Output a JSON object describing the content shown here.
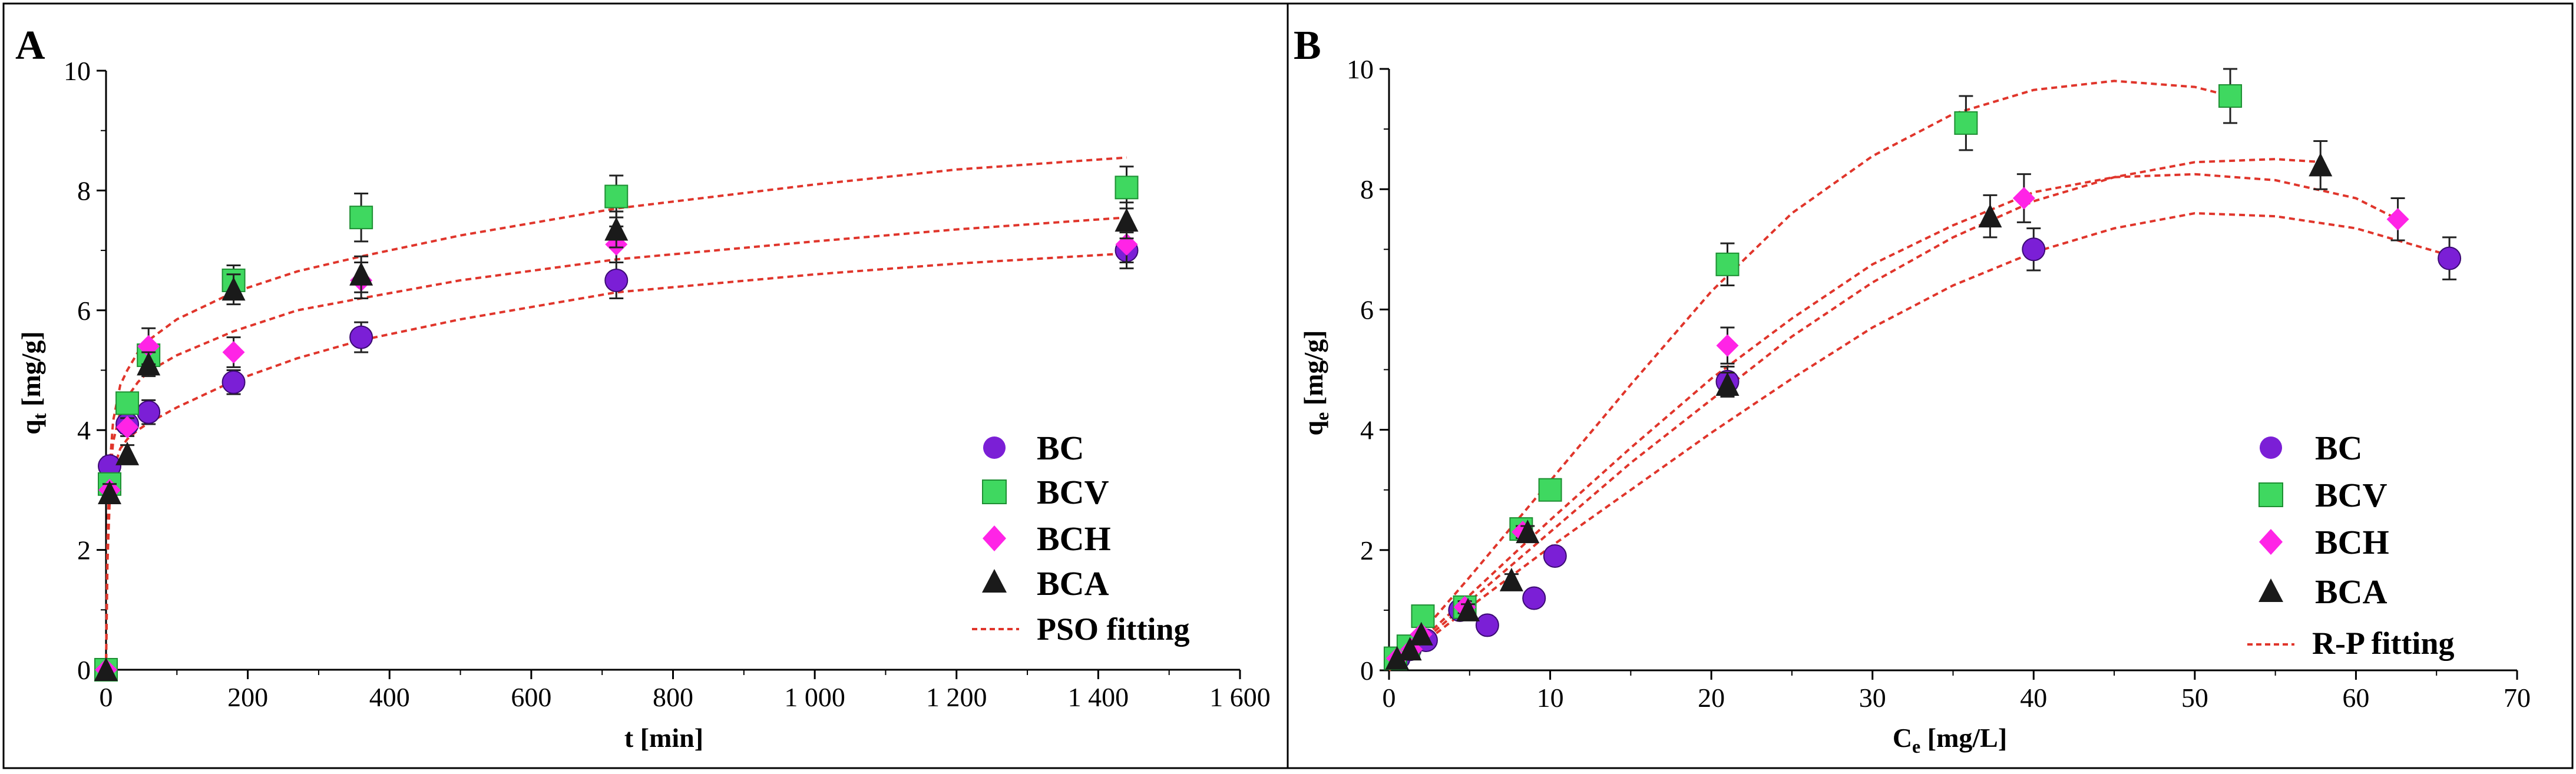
{
  "colors": {
    "BC": "#7b1fd6",
    "BCV": "#3fd860",
    "BCH": "#ff24e6",
    "BCA": "#1a1a1a",
    "fit": "#e0352b",
    "error": "#222222",
    "frame": "#000000"
  },
  "chart_data": [
    {
      "panel": "A",
      "type": "scatter",
      "xlabel": "t [min]",
      "ylabel": "qt [mg/g]",
      "xlim": [
        0,
        1600
      ],
      "ylim": [
        0,
        10
      ],
      "x_ticks": [
        0,
        200,
        400,
        600,
        800,
        1000,
        1200,
        1400,
        1600
      ],
      "x_tick_labels": [
        "0",
        "200",
        "400",
        "600",
        "800",
        "1 000",
        "1 200",
        "1 400",
        "1 600"
      ],
      "y_ticks": [
        0,
        2,
        4,
        6,
        8,
        10
      ],
      "y_tick_labels": [
        "0",
        "2",
        "4",
        "6",
        "8",
        "10"
      ],
      "grid": false,
      "legend_position": "bottom-right",
      "series": [
        {
          "name": "BC",
          "marker": "circle",
          "x": [
            0,
            5,
            30,
            60,
            180,
            360,
            720,
            1440
          ],
          "y": [
            0,
            3.4,
            4.1,
            4.3,
            4.8,
            5.55,
            6.5,
            7.0
          ],
          "err": [
            0,
            0.15,
            0.15,
            0.2,
            0.2,
            0.25,
            0.3,
            0.3
          ]
        },
        {
          "name": "BCV",
          "marker": "square",
          "x": [
            0,
            5,
            30,
            60,
            180,
            360,
            720,
            1440
          ],
          "y": [
            0,
            3.1,
            4.45,
            5.25,
            6.5,
            7.55,
            7.9,
            8.05
          ],
          "err": [
            0,
            0.15,
            0.15,
            0.2,
            0.25,
            0.4,
            0.35,
            0.35
          ]
        },
        {
          "name": "BCH",
          "marker": "diamond",
          "x": [
            0,
            5,
            30,
            60,
            180,
            360,
            720,
            1440
          ],
          "y": [
            0,
            3.0,
            4.05,
            5.4,
            5.3,
            6.5,
            7.1,
            7.1
          ],
          "err": [
            0,
            0.1,
            0.15,
            0.3,
            0.25,
            0.3,
            0.3,
            0.3
          ]
        },
        {
          "name": "BCA",
          "marker": "triangle",
          "x": [
            0,
            5,
            30,
            60,
            180,
            360,
            720,
            1440
          ],
          "y": [
            0,
            2.95,
            3.6,
            5.1,
            6.35,
            6.6,
            7.35,
            7.5
          ],
          "err": [
            0,
            0.15,
            0.15,
            0.2,
            0.25,
            0.3,
            0.3,
            0.3
          ]
        }
      ],
      "fits": [
        {
          "x": [
            0,
            2,
            5,
            10,
            20,
            30,
            45,
            60,
            100,
            180,
            270,
            360,
            500,
            720,
            1000,
            1200,
            1440
          ],
          "y": [
            0,
            1.78,
            2.76,
            3.31,
            3.69,
            3.85,
            4.0,
            4.12,
            4.38,
            4.82,
            5.2,
            5.5,
            5.85,
            6.3,
            6.6,
            6.78,
            6.95
          ]
        },
        {
          "x": [
            0,
            2,
            5,
            10,
            20,
            30,
            45,
            60,
            100,
            180,
            270,
            360,
            500,
            720,
            1000,
            1200,
            1440
          ],
          "y": [
            0,
            2.05,
            3.1,
            3.8,
            4.3,
            4.55,
            4.8,
            4.98,
            5.25,
            5.65,
            6.0,
            6.2,
            6.5,
            6.85,
            7.15,
            7.35,
            7.55
          ]
        },
        {
          "x": [
            0,
            2,
            5,
            10,
            20,
            30,
            45,
            60,
            100,
            180,
            270,
            360,
            500,
            720,
            1000,
            1200,
            1440
          ],
          "y": [
            0,
            2.2,
            3.35,
            4.15,
            4.75,
            5.0,
            5.3,
            5.5,
            5.85,
            6.3,
            6.65,
            6.9,
            7.25,
            7.7,
            8.1,
            8.35,
            8.55
          ]
        }
      ]
    },
    {
      "panel": "B",
      "type": "scatter",
      "xlabel": "Ce [mg/L]",
      "ylabel": "qe [mg/g]",
      "xlim": [
        0,
        70
      ],
      "ylim": [
        0,
        10
      ],
      "x_ticks": [
        0,
        10,
        20,
        30,
        40,
        50,
        60,
        70
      ],
      "x_tick_labels": [
        "0",
        "10",
        "20",
        "30",
        "40",
        "50",
        "60",
        "70"
      ],
      "y_ticks": [
        0,
        2,
        4,
        6,
        8,
        10
      ],
      "y_tick_labels": [
        "0",
        "2",
        "4",
        "6",
        "8",
        "10"
      ],
      "grid": false,
      "legend_position": "bottom-right",
      "series": [
        {
          "name": "BC",
          "marker": "circle",
          "x": [
            0.6,
            1.3,
            2.3,
            4.4,
            6.1,
            9.0,
            10.3,
            21.0,
            40.0,
            65.8
          ],
          "y": [
            0.2,
            0.35,
            0.5,
            1.0,
            0.75,
            1.2,
            1.9,
            4.8,
            7.0,
            6.85
          ],
          "err": [
            0.05,
            0.05,
            0.05,
            0.1,
            0.05,
            0.05,
            0.1,
            0.25,
            0.35,
            0.35
          ]
        },
        {
          "name": "BCV",
          "marker": "square",
          "x": [
            0.4,
            1.2,
            2.1,
            4.7,
            8.2,
            10.0,
            21.0,
            35.8,
            52.2
          ],
          "y": [
            0.2,
            0.4,
            0.9,
            1.05,
            2.35,
            3.0,
            6.75,
            9.1,
            9.55
          ],
          "err": [
            0.05,
            0.05,
            0.05,
            0.1,
            0.1,
            0.15,
            0.35,
            0.45,
            0.45
          ]
        },
        {
          "name": "BCH",
          "marker": "diamond",
          "x": [
            0.5,
            1.4,
            2.0,
            4.7,
            8.3,
            21.0,
            39.4,
            62.6
          ],
          "y": [
            0.2,
            0.35,
            0.6,
            1.05,
            2.3,
            5.4,
            7.85,
            7.5
          ],
          "err": [
            0.05,
            0.05,
            0.05,
            0.1,
            0.1,
            0.3,
            0.4,
            0.35
          ]
        },
        {
          "name": "BCA",
          "marker": "triangle",
          "x": [
            0.5,
            1.3,
            2.0,
            4.9,
            7.6,
            8.6,
            21.0,
            37.3,
            57.8
          ],
          "y": [
            0.2,
            0.35,
            0.6,
            1.0,
            1.5,
            2.3,
            4.75,
            7.55,
            8.4
          ],
          "err": [
            0.05,
            0.05,
            0.05,
            0.1,
            0.1,
            0.1,
            0.2,
            0.35,
            0.4
          ]
        }
      ],
      "fits": [
        {
          "x": [
            0,
            5,
            10,
            15,
            20,
            25,
            30,
            35,
            40,
            45,
            50,
            55,
            60,
            65.8
          ],
          "y": [
            0,
            1.05,
            2.05,
            3.0,
            3.95,
            4.85,
            5.7,
            6.4,
            6.95,
            7.35,
            7.6,
            7.55,
            7.35,
            6.9
          ]
        },
        {
          "x": [
            0,
            5,
            10,
            15,
            20,
            25,
            30,
            35,
            40,
            45,
            50,
            55,
            58
          ],
          "y": [
            0,
            1.15,
            2.3,
            3.45,
            4.5,
            5.55,
            6.45,
            7.2,
            7.8,
            8.2,
            8.45,
            8.5,
            8.45
          ]
        },
        {
          "x": [
            0,
            5,
            10,
            15,
            20,
            25,
            30,
            35,
            40,
            45,
            50,
            55,
            60,
            62.6
          ],
          "y": [
            0,
            1.25,
            2.5,
            3.7,
            4.85,
            5.85,
            6.75,
            7.4,
            7.95,
            8.2,
            8.25,
            8.15,
            7.85,
            7.5
          ]
        },
        {
          "x": [
            0,
            5,
            10,
            15,
            20,
            25,
            30,
            35,
            40,
            45,
            50,
            52.2
          ],
          "y": [
            0,
            1.55,
            3.15,
            4.75,
            6.3,
            7.6,
            8.55,
            9.25,
            9.65,
            9.8,
            9.7,
            9.55
          ]
        }
      ]
    }
  ],
  "panels": {
    "A": {
      "letter": "A",
      "ylabel_main": "q",
      "ylabel_sub": "t",
      "ylabel_rest": " [mg/g]",
      "xlabel": "t [min]",
      "legend": [
        "BC",
        "BCV",
        "BCH",
        "BCA"
      ],
      "fit_label": "PSO fitting"
    },
    "B": {
      "letter": "B",
      "ylabel_main": "q",
      "ylabel_sub": "e",
      "ylabel_rest": " [mg/g]",
      "xlabel_main": "C",
      "xlabel_sub": "e",
      "xlabel_rest": " [mg/L]",
      "legend": [
        "BC",
        "BCV",
        "BCH",
        "BCA"
      ],
      "fit_label": "R-P fitting"
    }
  }
}
